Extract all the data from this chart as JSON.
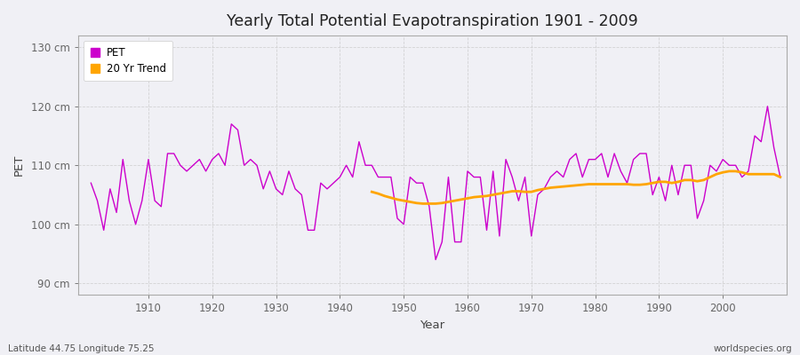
{
  "title": "Yearly Total Potential Evapotranspiration 1901 - 2009",
  "xlabel": "Year",
  "ylabel": "PET",
  "footnote_left": "Latitude 44.75 Longitude 75.25",
  "footnote_right": "worldspecies.org",
  "ylim": [
    88,
    132
  ],
  "yticks": [
    90,
    100,
    110,
    120,
    130
  ],
  "ytick_labels": [
    "90 cm",
    "100 cm",
    "110 cm",
    "120 cm",
    "130 cm"
  ],
  "xlim": [
    1899,
    2010
  ],
  "xticks": [
    1910,
    1920,
    1930,
    1940,
    1950,
    1960,
    1970,
    1980,
    1990,
    2000
  ],
  "years": [
    1901,
    1902,
    1903,
    1904,
    1905,
    1906,
    1907,
    1908,
    1909,
    1910,
    1911,
    1912,
    1913,
    1914,
    1915,
    1916,
    1917,
    1918,
    1919,
    1920,
    1921,
    1922,
    1923,
    1924,
    1925,
    1926,
    1927,
    1928,
    1929,
    1930,
    1931,
    1932,
    1933,
    1934,
    1935,
    1936,
    1937,
    1938,
    1939,
    1940,
    1941,
    1942,
    1943,
    1944,
    1945,
    1946,
    1947,
    1948,
    1949,
    1950,
    1951,
    1952,
    1953,
    1954,
    1955,
    1956,
    1957,
    1958,
    1959,
    1960,
    1961,
    1962,
    1963,
    1964,
    1965,
    1966,
    1967,
    1968,
    1969,
    1970,
    1971,
    1972,
    1973,
    1974,
    1975,
    1976,
    1977,
    1978,
    1979,
    1980,
    1981,
    1982,
    1983,
    1984,
    1985,
    1986,
    1987,
    1988,
    1989,
    1990,
    1991,
    1992,
    1993,
    1994,
    1995,
    1996,
    1997,
    1998,
    1999,
    2000,
    2001,
    2002,
    2003,
    2004,
    2005,
    2006,
    2007,
    2008,
    2009
  ],
  "pet": [
    107,
    104,
    99,
    106,
    102,
    111,
    104,
    100,
    104,
    111,
    104,
    103,
    112,
    112,
    110,
    109,
    110,
    111,
    109,
    111,
    112,
    110,
    117,
    116,
    110,
    111,
    110,
    106,
    109,
    106,
    105,
    109,
    106,
    105,
    99,
    99,
    107,
    106,
    107,
    108,
    110,
    108,
    114,
    110,
    110,
    108,
    108,
    108,
    101,
    100,
    108,
    107,
    107,
    103,
    94,
    97,
    108,
    97,
    97,
    109,
    108,
    108,
    99,
    109,
    98,
    111,
    108,
    104,
    108,
    98,
    105,
    106,
    108,
    109,
    108,
    111,
    112,
    108,
    111,
    111,
    112,
    108,
    112,
    109,
    107,
    111,
    112,
    112,
    105,
    108,
    104,
    110,
    105,
    110,
    110,
    101,
    104,
    110,
    109,
    111,
    110,
    110,
    108,
    109,
    115,
    114,
    120,
    113,
    108
  ],
  "trend_years": [
    1945,
    1946,
    1947,
    1948,
    1949,
    1950,
    1951,
    1952,
    1953,
    1954,
    1955,
    1956,
    1957,
    1958,
    1959,
    1960,
    1961,
    1962,
    1963,
    1964,
    1965,
    1966,
    1967,
    1968,
    1969,
    1970,
    1971,
    1972,
    1973,
    1974,
    1975,
    1976,
    1977,
    1978,
    1979,
    1980,
    1981,
    1982,
    1983,
    1984,
    1985,
    1986,
    1987,
    1988,
    1989,
    1990,
    1991,
    1992,
    1993,
    1994,
    1995,
    1996,
    1997,
    1998,
    1999,
    2000,
    2001,
    2002,
    2003,
    2004,
    2005,
    2006,
    2007,
    2008,
    2009
  ],
  "trend": [
    105.5,
    105.2,
    104.8,
    104.5,
    104.2,
    104.0,
    103.8,
    103.6,
    103.5,
    103.5,
    103.5,
    103.6,
    103.8,
    104.0,
    104.2,
    104.4,
    104.6,
    104.7,
    104.8,
    105.0,
    105.2,
    105.4,
    105.6,
    105.6,
    105.5,
    105.5,
    105.8,
    106.0,
    106.2,
    106.3,
    106.4,
    106.5,
    106.6,
    106.7,
    106.8,
    106.8,
    106.8,
    106.8,
    106.8,
    106.8,
    106.8,
    106.7,
    106.7,
    106.8,
    107.0,
    107.2,
    107.2,
    107.0,
    107.2,
    107.5,
    107.5,
    107.3,
    107.5,
    108.0,
    108.5,
    108.8,
    109.0,
    109.0,
    108.8,
    108.5,
    108.5,
    108.5,
    108.5,
    108.5,
    108.0
  ],
  "pet_color": "#cc00cc",
  "trend_color": "#ffa500",
  "bg_color": "#f0f0f5",
  "plot_bg": "#f0f0f5",
  "grid_color": "#cccccc",
  "spine_color": "#aaaaaa",
  "tick_color": "#666666",
  "label_color": "#444444"
}
